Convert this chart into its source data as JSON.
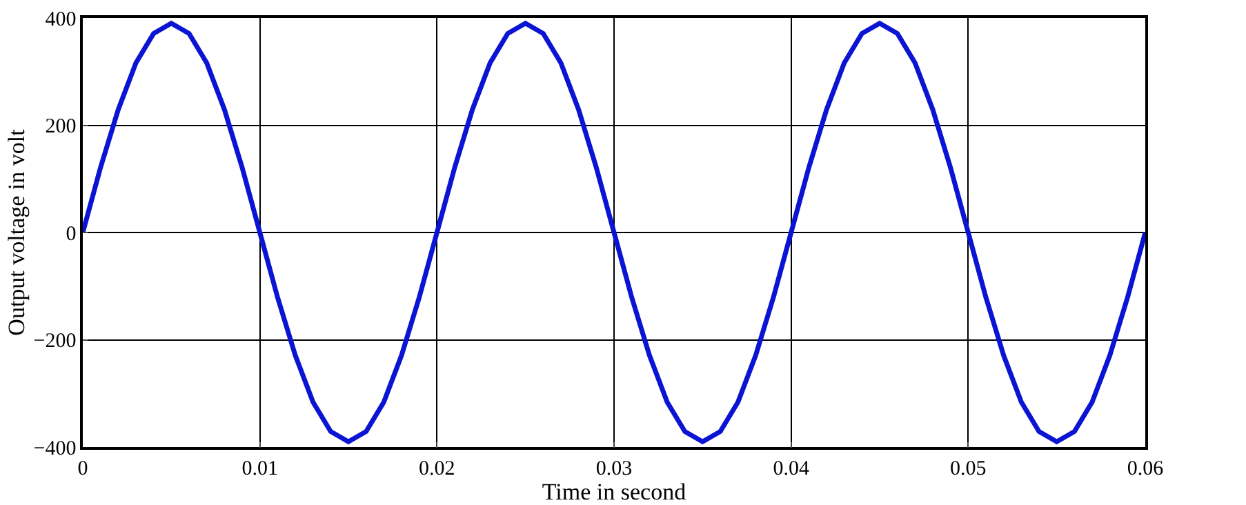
{
  "chart_data": {
    "type": "line",
    "xlabel": "Time in second",
    "ylabel": "Output voltage in volt",
    "x": [
      0,
      0.001,
      0.002,
      0.003,
      0.004,
      0.005,
      0.006,
      0.007,
      0.008,
      0.009,
      0.01,
      0.011,
      0.012,
      0.013,
      0.014,
      0.015,
      0.016,
      0.017,
      0.018,
      0.019,
      0.02,
      0.021,
      0.022,
      0.023,
      0.024,
      0.025,
      0.026,
      0.027,
      0.028,
      0.029,
      0.03,
      0.031,
      0.032,
      0.033,
      0.034,
      0.035,
      0.036,
      0.037,
      0.038,
      0.039,
      0.04,
      0.041,
      0.042,
      0.043,
      0.044,
      0.045,
      0.046,
      0.047,
      0.048,
      0.049,
      0.05,
      0.051,
      0.052,
      0.053,
      0.054,
      0.055,
      0.056,
      0.057,
      0.058,
      0.059,
      0.06
    ],
    "series": [
      {
        "color": "#0a14d2",
        "values": [
          0,
          121,
          229,
          316,
          371,
          390,
          371,
          316,
          229,
          121,
          0,
          -121,
          -229,
          -316,
          -371,
          -390,
          -371,
          -316,
          -229,
          -121,
          0,
          121,
          229,
          316,
          371,
          390,
          371,
          316,
          229,
          121,
          0,
          -121,
          -229,
          -316,
          -371,
          -390,
          -371,
          -316,
          -229,
          -121,
          0,
          121,
          229,
          316,
          371,
          390,
          371,
          316,
          229,
          121,
          0,
          -121,
          -229,
          -316,
          -371,
          -390,
          -371,
          -316,
          -229,
          -121,
          0
        ]
      }
    ],
    "xlim": [
      0,
      0.06
    ],
    "xticks": [
      0,
      0.01,
      0.02,
      0.03,
      0.04,
      0.05,
      0.06
    ],
    "ylim": [
      -400,
      400
    ],
    "yticks": [
      {
        "value": -400,
        "label": "−400"
      },
      {
        "value": -200,
        "label": "−200"
      },
      0,
      200,
      400
    ],
    "grid": true,
    "marker": "none",
    "line_style": "solid"
  }
}
